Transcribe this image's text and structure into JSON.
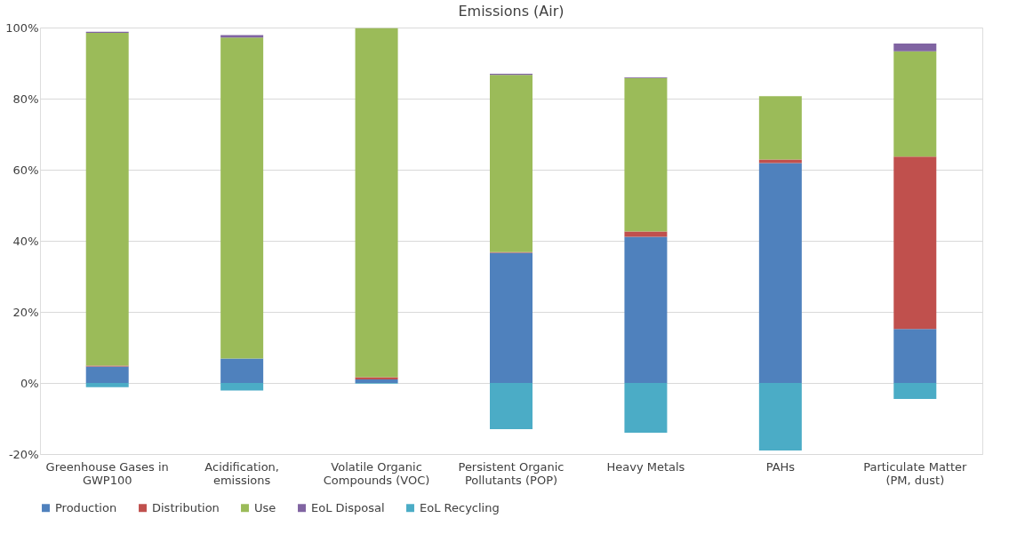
{
  "chart_data": {
    "type": "bar",
    "stacked": true,
    "title": "Emissions (Air)",
    "categories": [
      "Greenhouse Gases in GWP100",
      "Acidification, emissions",
      "Volatile Organic Compounds (VOC)",
      "Persistent Organic Pollutants (POP)",
      "Heavy Metals",
      "PAHs",
      "Particulate Matter (PM, dust)"
    ],
    "series": [
      {
        "name": "Production",
        "color": "#4f81bd",
        "values": [
          4.6,
          6.9,
          1.0,
          36.6,
          41.1,
          61.9,
          15.2
        ]
      },
      {
        "name": "Distribution",
        "color": "#c0504d",
        "values": [
          0.3,
          null,
          0.6,
          0.2,
          1.5,
          1.0,
          48.5
        ]
      },
      {
        "name": "Use",
        "color": "#9bbb59",
        "values": [
          93.6,
          90.3,
          98.2,
          49.9,
          43.2,
          17.8,
          29.6
        ]
      },
      {
        "name": "EoL Disposal",
        "color": "#8064a2",
        "values": [
          0.3,
          0.7,
          null,
          0.3,
          0.2,
          null,
          2.2
        ]
      },
      {
        "name": "EoL Recycling",
        "color": "#4bacc6",
        "values": [
          -1.2,
          -2.1,
          -0.2,
          -13.0,
          -14.0,
          -19.0,
          -4.5
        ]
      }
    ],
    "ylim": [
      -20,
      100
    ],
    "yticks": [
      {
        "value": -20,
        "label": "-20%"
      },
      {
        "value": 0,
        "label": "0%"
      },
      {
        "value": 20,
        "label": "20%"
      },
      {
        "value": 40,
        "label": "40%"
      },
      {
        "value": 60,
        "label": "60%"
      },
      {
        "value": 80,
        "label": "80%"
      },
      {
        "value": 100,
        "label": "100%"
      }
    ],
    "grid": "y",
    "legend": "bottom"
  }
}
